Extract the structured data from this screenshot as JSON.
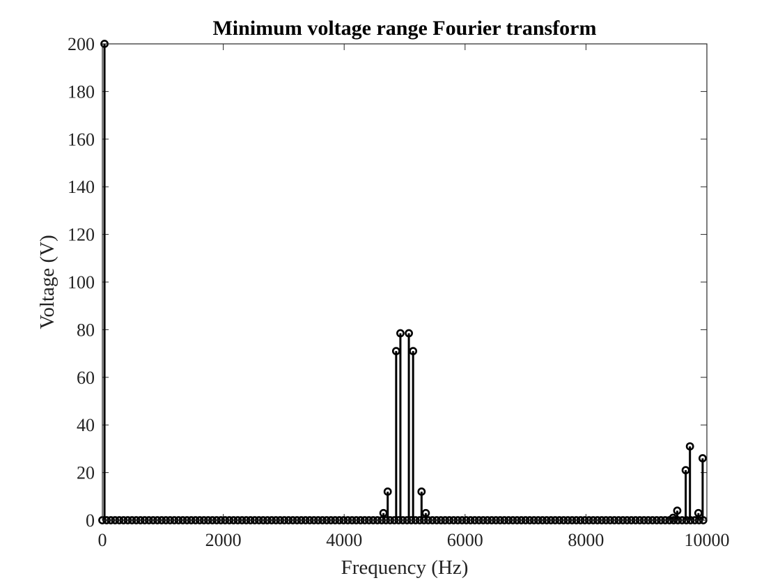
{
  "chart_data": {
    "type": "stem",
    "title": "Minimum voltage range Fourier transform",
    "xlabel": "Frequency (Hz)",
    "ylabel": "Voltage (V)",
    "xlim": [
      0,
      10000
    ],
    "ylim": [
      0,
      200
    ],
    "xticks": [
      0,
      2000,
      4000,
      6000,
      8000,
      10000
    ],
    "yticks": [
      0,
      20,
      40,
      60,
      80,
      100,
      120,
      140,
      160,
      180,
      200
    ],
    "grid": false,
    "legend": "none",
    "color": "#000000",
    "marker": "open-circle",
    "baseline_points": {
      "x_start": 0,
      "x_end": 10000,
      "step": 70,
      "value": 0
    },
    "nonzero_points": [
      {
        "x": 35,
        "y": 200
      },
      {
        "x": 4650,
        "y": 3
      },
      {
        "x": 4720,
        "y": 12
      },
      {
        "x": 4860,
        "y": 71
      },
      {
        "x": 4930,
        "y": 78.5
      },
      {
        "x": 5070,
        "y": 78.5
      },
      {
        "x": 5140,
        "y": 71
      },
      {
        "x": 5280,
        "y": 12
      },
      {
        "x": 5350,
        "y": 3
      },
      {
        "x": 9440,
        "y": 1
      },
      {
        "x": 9510,
        "y": 4
      },
      {
        "x": 9650,
        "y": 21
      },
      {
        "x": 9720,
        "y": 31
      },
      {
        "x": 9860,
        "y": 3
      },
      {
        "x": 9930,
        "y": 26
      }
    ]
  }
}
